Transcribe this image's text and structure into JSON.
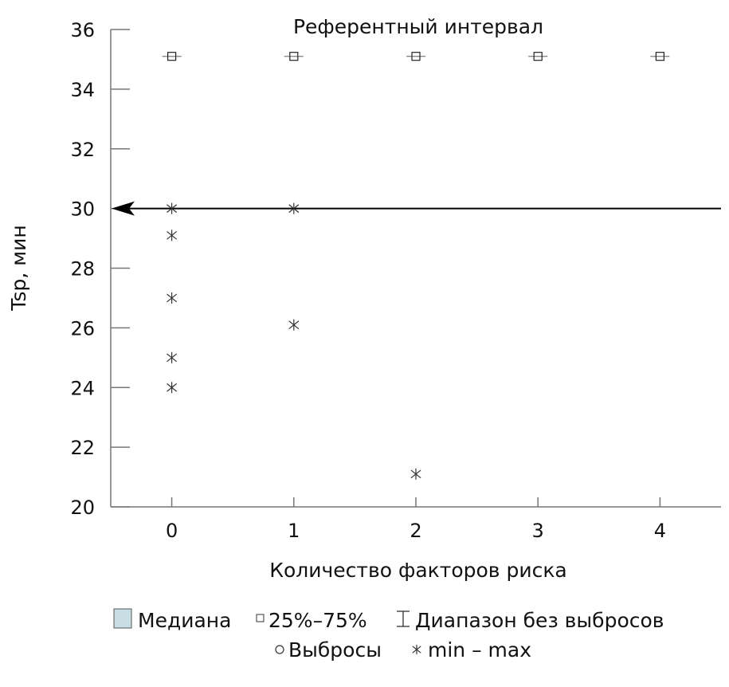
{
  "chart_data": {
    "type": "scatter",
    "title": "",
    "annotation": "Референтный интервал",
    "xlabel": "Количество факторов риска",
    "ylabel": "Tsp, мин",
    "xlim": [
      -0.5,
      4.5
    ],
    "ylim": [
      20,
      36
    ],
    "xticks": [
      "0",
      "1",
      "2",
      "3",
      "4"
    ],
    "yticks": [
      "20",
      "22",
      "24",
      "26",
      "28",
      "30",
      "32",
      "34",
      "36"
    ],
    "grid": false,
    "reference_line": {
      "y": 30,
      "style": "arrow pointing left"
    },
    "series": [
      {
        "name": "25%–75%",
        "marker": "square",
        "x": [
          0,
          1,
          2,
          3,
          4
        ],
        "y": [
          35.1,
          35.1,
          35.1,
          35.1,
          35.1
        ]
      },
      {
        "name": "min – max",
        "marker": "asterisk",
        "x": [
          0,
          0,
          0,
          0,
          0,
          1,
          1,
          2
        ],
        "y": [
          30,
          29.1,
          27,
          25,
          24,
          30,
          26.1,
          21.1
        ]
      }
    ],
    "legend": {
      "placement": "bottom",
      "items": [
        {
          "label": "Медиана",
          "symbol": "filled-square",
          "color": "#c9dde4"
        },
        {
          "label": "25%–75%",
          "symbol": "square"
        },
        {
          "label": "Диапазон без выбросов",
          "symbol": "whisker"
        },
        {
          "label": "Выбросы",
          "symbol": "circle"
        },
        {
          "label": "min – max",
          "symbol": "asterisk"
        }
      ]
    }
  }
}
